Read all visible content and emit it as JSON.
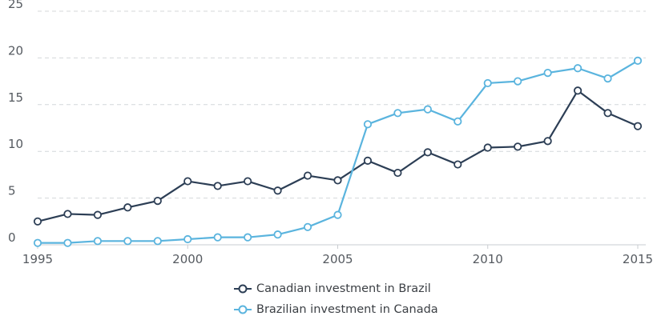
{
  "chart_data": {
    "type": "line",
    "x": [
      1995,
      1996,
      1997,
      1998,
      1999,
      2000,
      2001,
      2002,
      2003,
      2004,
      2005,
      2006,
      2007,
      2008,
      2009,
      2010,
      2011,
      2012,
      2013,
      2014,
      2015
    ],
    "series": [
      {
        "name": "Canadian investment in Brazil",
        "color": "#2c3e55",
        "values": [
          2.5,
          3.3,
          3.2,
          4.0,
          4.7,
          6.8,
          6.3,
          6.8,
          5.8,
          7.4,
          6.9,
          9.0,
          7.7,
          9.9,
          8.6,
          10.4,
          10.5,
          11.1,
          16.5,
          14.1,
          12.7
        ]
      },
      {
        "name": "Brazilian investment in Canada",
        "color": "#5ab4de",
        "values": [
          0.2,
          0.2,
          0.4,
          0.4,
          0.4,
          0.6,
          0.8,
          0.8,
          1.1,
          1.9,
          3.2,
          12.9,
          14.1,
          14.5,
          13.2,
          17.3,
          17.5,
          18.4,
          18.9,
          17.8,
          19.7
        ]
      }
    ],
    "xlim": [
      1995,
      2015
    ],
    "ylim": [
      0,
      25
    ],
    "x_ticks": [
      "1995",
      "2000",
      "2005",
      "2010",
      "2015"
    ],
    "y_ticks": [
      "0",
      "5",
      "10",
      "15",
      "20",
      "25"
    ],
    "grid": "horizontal dashed",
    "legend_position": "bottom-center",
    "title": "",
    "xlabel": "",
    "ylabel": ""
  }
}
